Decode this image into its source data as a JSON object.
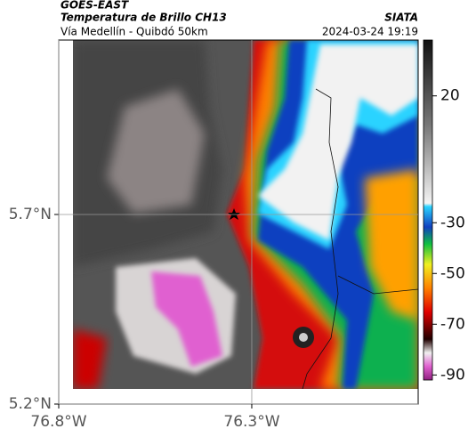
{
  "header": {
    "source": "GOES-EAST",
    "product": "Temperatura de Brillo CH13",
    "region": "Vía Medellín - Quibdó 50km",
    "agency": "SIATA",
    "timestamp": "2024-03-24 19:19"
  },
  "map": {
    "lat_lim": [
      5.2,
      6.16
    ],
    "lon_lim": [
      -76.8,
      -75.869
    ],
    "lat_ticks": [
      {
        "value": 5.7,
        "label": "5.7°N"
      },
      {
        "value": 5.2,
        "label": "5.2°N"
      }
    ],
    "lon_ticks": [
      {
        "value": -76.8,
        "label": "76.8°W"
      },
      {
        "value": -76.3,
        "label": "76.3°W"
      }
    ],
    "grid": true
  },
  "colorbar": {
    "lim": [
      42,
      -92
    ],
    "ticks": [
      20,
      -30,
      -50,
      -70,
      -90
    ]
  }
}
